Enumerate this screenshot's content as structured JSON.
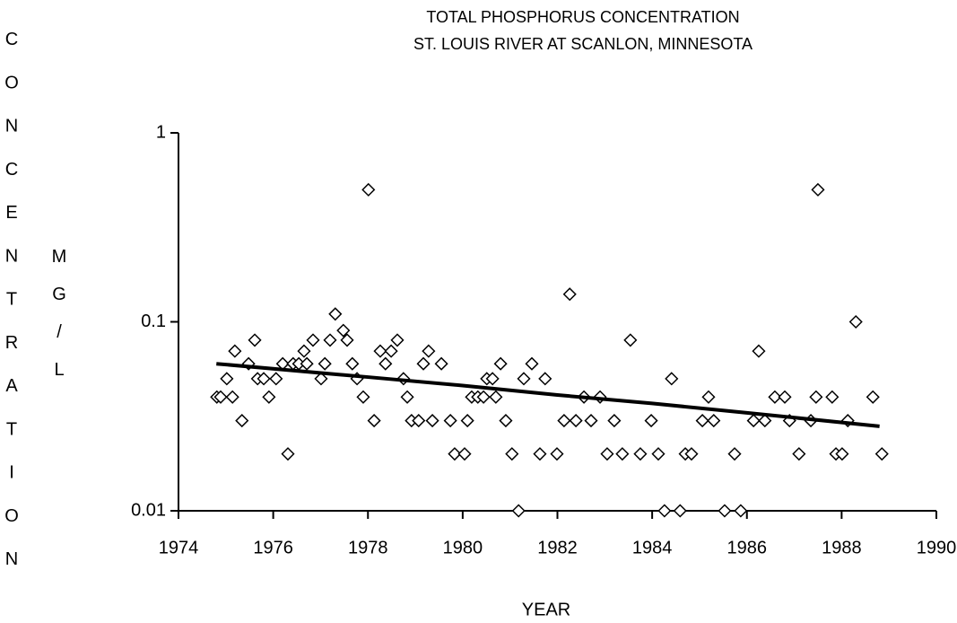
{
  "chart_data": {
    "type": "scatter",
    "title": "TOTAL PHOSPHORUS CONCENTRATION",
    "subtitle": "ST. LOUIS RIVER AT SCANLON, MINNESOTA",
    "y_label": "CONCENTRATION",
    "y_unit": "MG/L",
    "x_label": "YEAR",
    "xlim": [
      1974,
      1990
    ],
    "xticks": [
      1974,
      1976,
      1978,
      1980,
      1982,
      1984,
      1986,
      1988,
      1990
    ],
    "ylim": [
      0.01,
      1
    ],
    "yticks": [
      0.01,
      0.1,
      1
    ],
    "y_scale": "log",
    "marker_color": "#000000",
    "line_color": "#000000",
    "points": {
      "x": [
        1974.81,
        1974.89,
        1975.02,
        1975.14,
        1975.19,
        1975.34,
        1975.48,
        1975.61,
        1975.67,
        1975.8,
        1975.91,
        1976.06,
        1976.2,
        1976.31,
        1976.42,
        1976.54,
        1976.65,
        1976.71,
        1976.84,
        1977.01,
        1977.09,
        1977.2,
        1977.31,
        1977.48,
        1977.56,
        1977.67,
        1977.77,
        1977.9,
        1978.01,
        1978.13,
        1978.26,
        1978.37,
        1978.49,
        1978.62,
        1978.75,
        1978.83,
        1978.92,
        1979.07,
        1979.17,
        1979.28,
        1979.36,
        1979.55,
        1979.74,
        1979.83,
        1980.04,
        1980.1,
        1980.19,
        1980.32,
        1980.44,
        1980.51,
        1980.63,
        1980.7,
        1980.8,
        1980.91,
        1981.04,
        1981.18,
        1981.29,
        1981.46,
        1981.63,
        1981.74,
        1981.99,
        1982.14,
        1982.26,
        1982.39,
        1982.56,
        1982.71,
        1982.9,
        1983.05,
        1983.2,
        1983.37,
        1983.54,
        1983.75,
        1983.98,
        1984.13,
        1984.26,
        1984.41,
        1984.59,
        1984.7,
        1984.83,
        1985.06,
        1985.19,
        1985.3,
        1985.53,
        1985.74,
        1985.87,
        1986.14,
        1986.25,
        1986.38,
        1986.59,
        1986.8,
        1986.9,
        1987.1,
        1987.35,
        1987.46,
        1987.5,
        1987.8,
        1987.88,
        1988.01,
        1988.13,
        1988.3,
        1988.66,
        1988.85
      ],
      "values": [
        0.04,
        0.04,
        0.05,
        0.04,
        0.07,
        0.03,
        0.06,
        0.08,
        0.05,
        0.05,
        0.04,
        0.05,
        0.06,
        0.02,
        0.06,
        0.06,
        0.07,
        0.06,
        0.08,
        0.05,
        0.06,
        0.08,
        0.11,
        0.09,
        0.08,
        0.06,
        0.05,
        0.04,
        0.5,
        0.03,
        0.07,
        0.06,
        0.07,
        0.08,
        0.05,
        0.04,
        0.03,
        0.03,
        0.06,
        0.07,
        0.03,
        0.06,
        0.03,
        0.02,
        0.02,
        0.03,
        0.04,
        0.04,
        0.04,
        0.05,
        0.05,
        0.04,
        0.06,
        0.03,
        0.02,
        0.01,
        0.05,
        0.06,
        0.02,
        0.05,
        0.02,
        0.03,
        0.14,
        0.03,
        0.04,
        0.03,
        0.04,
        0.02,
        0.03,
        0.02,
        0.08,
        0.02,
        0.03,
        0.02,
        0.01,
        0.05,
        0.01,
        0.02,
        0.02,
        0.03,
        0.04,
        0.03,
        0.01,
        0.02,
        0.01,
        0.03,
        0.07,
        0.03,
        0.04,
        0.04,
        0.03,
        0.02,
        0.03,
        0.04,
        0.5,
        0.04,
        0.02,
        0.02,
        0.03,
        0.1,
        0.04,
        0.02
      ]
    },
    "trend": {
      "x": [
        1974.8,
        1978,
        1980,
        1982,
        1984,
        1986,
        1988.8
      ],
      "values": [
        0.06,
        0.051,
        0.046,
        0.041,
        0.037,
        0.033,
        0.028
      ]
    }
  }
}
